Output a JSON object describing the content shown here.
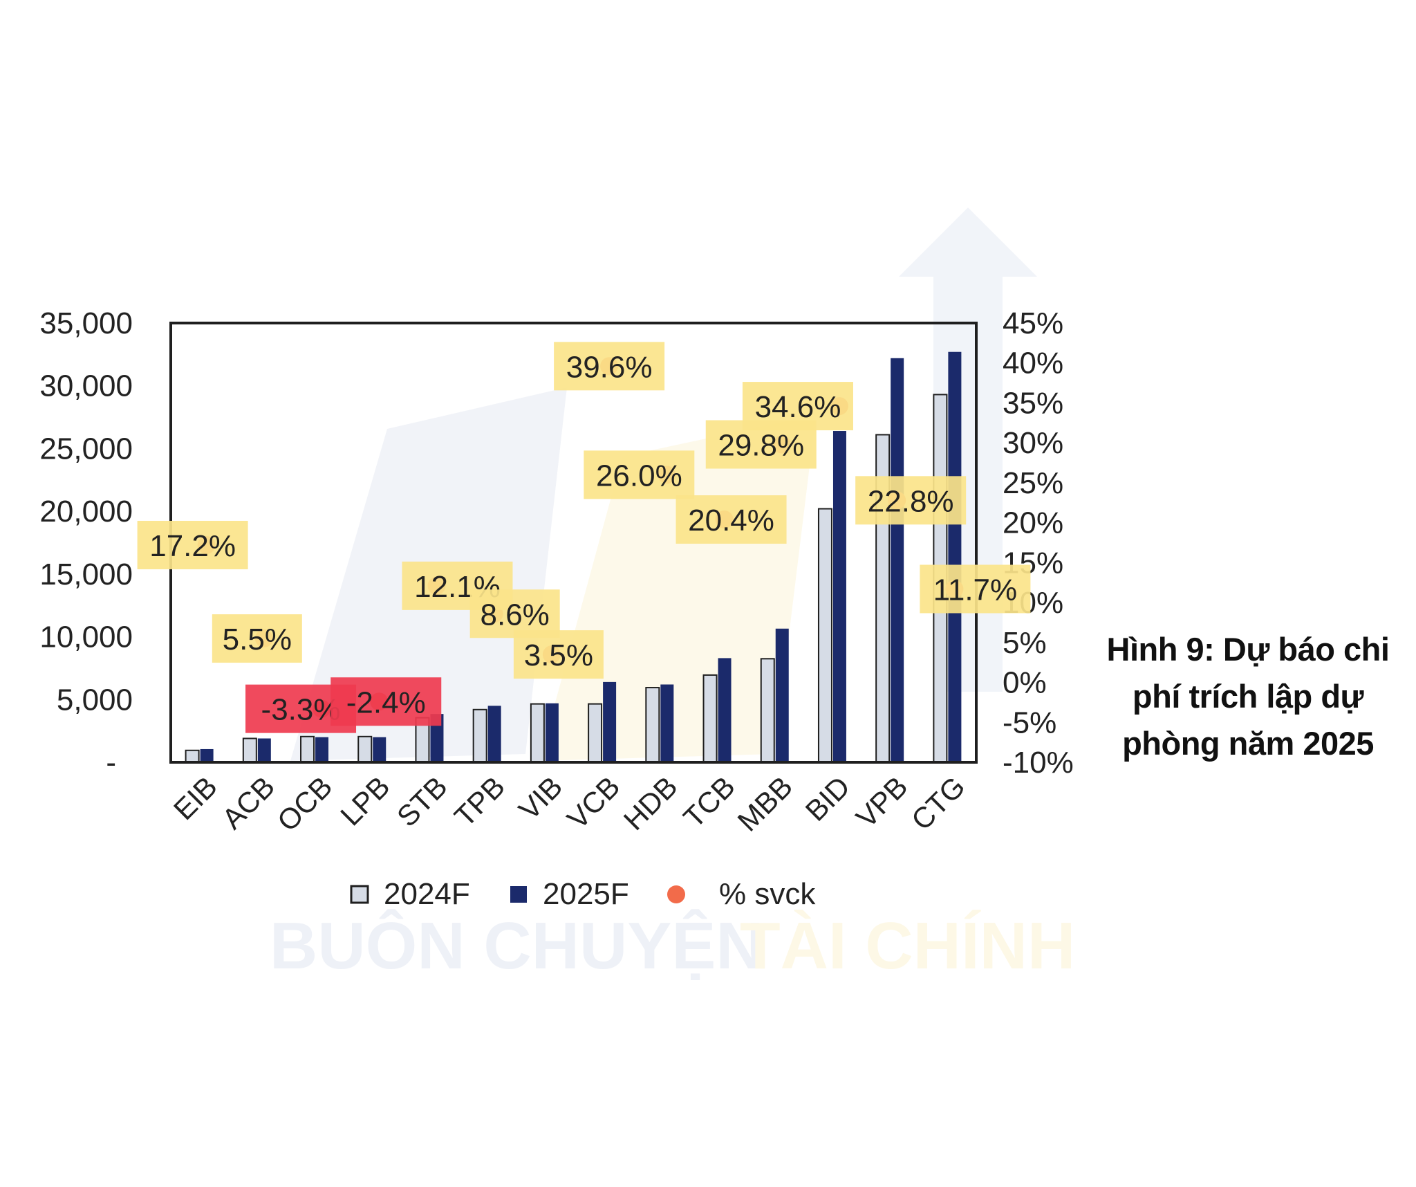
{
  "caption": "Hình 9: Dự báo chi phí trích lập dự phòng năm 2025",
  "watermark": {
    "text_left": "BUÔN CHUYỆN",
    "text_right": "TÀI CHÍNH",
    "color_left": "#eef1f7",
    "color_right": "#fdf8e6"
  },
  "colors": {
    "bar_2024": "#d6dce6",
    "bar_2025": "#1b2a6b",
    "bar_outline": "#1f1f1f",
    "dot": "#f26b4a",
    "label_positive": "#fbe48a",
    "label_negative": "#ef3b4f",
    "axis": "#1f1f1f"
  },
  "chart_data": {
    "type": "bar",
    "categories": [
      "EIB",
      "ACB",
      "OCB",
      "LPB",
      "STB",
      "TPB",
      "VIB",
      "VCB",
      "HDB",
      "TCB",
      "MBB",
      "BID",
      "VPB",
      "CTG"
    ],
    "series": [
      {
        "name": "2024F",
        "values": [
          950,
          1900,
          2050,
          2050,
          3550,
          4200,
          4650,
          4650,
          5950,
          6950,
          8250,
          20200,
          26100,
          29300
        ]
      },
      {
        "name": "2025F",
        "values": [
          1050,
          1900,
          2000,
          2000,
          3850,
          4500,
          4700,
          6400,
          6200,
          8300,
          10650,
          26400,
          32200,
          32700
        ]
      }
    ],
    "pct_svck": {
      "name": "% svck",
      "values": [
        17.2,
        5.5,
        -3.3,
        -2.4,
        12.1,
        8.6,
        3.5,
        39.6,
        26.0,
        20.4,
        29.8,
        34.6,
        22.8,
        11.7
      ],
      "labels": [
        "17.2%",
        "5.5%",
        "-3.3%",
        "-2.4%",
        "12.1%",
        "8.6%",
        "3.5%",
        "39.6%",
        "26.0%",
        "20.4%",
        "29.8%",
        "34.6%",
        "22.8%",
        "11.7%"
      ]
    },
    "y_left": {
      "min": 0,
      "max": 35000,
      "ticks": [
        "-",
        "5,000",
        "10,000",
        "15,000",
        "20,000",
        "25,000",
        "30,000",
        "35,000"
      ]
    },
    "y_right": {
      "min": -10,
      "max": 45,
      "ticks": [
        "-10%",
        "-5%",
        "0%",
        "5%",
        "10%",
        "15%",
        "20%",
        "25%",
        "30%",
        "35%",
        "40%",
        "45%"
      ]
    },
    "legend": [
      "2024F",
      "2025F",
      "% svck"
    ],
    "legend_position": "bottom",
    "grid": false
  }
}
